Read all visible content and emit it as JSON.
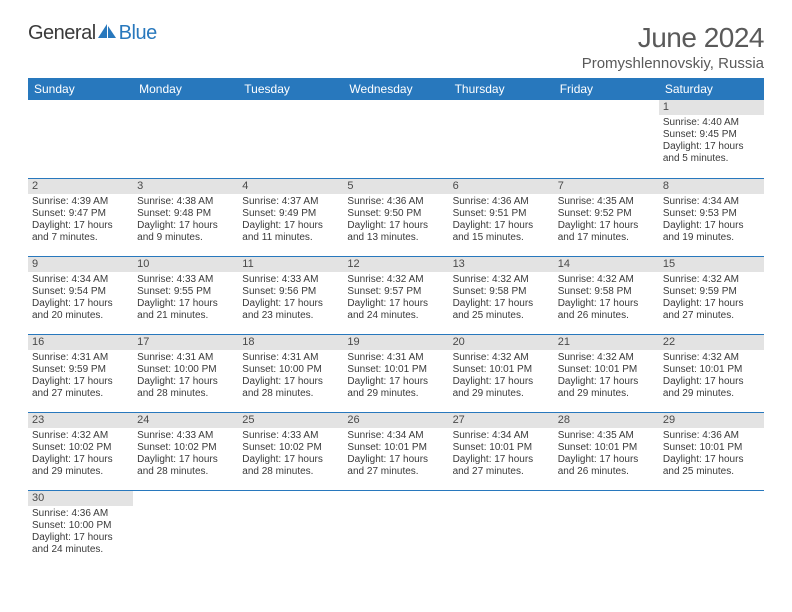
{
  "header": {
    "logo_general": "General",
    "logo_blue": "Blue",
    "month_title": "June 2024",
    "location": "Promyshlennovskiy, Russia"
  },
  "colors": {
    "header_bg": "#2878bd",
    "header_fg": "#ffffff",
    "daynum_bg": "#e3e3e3",
    "cell_border": "#2878bd",
    "text": "#3a3a3a",
    "title": "#5a5a5a"
  },
  "weekdays": [
    "Sunday",
    "Monday",
    "Tuesday",
    "Wednesday",
    "Thursday",
    "Friday",
    "Saturday"
  ],
  "grid": [
    [
      null,
      null,
      null,
      null,
      null,
      null,
      {
        "n": "1",
        "sr": "Sunrise: 4:40 AM",
        "ss": "Sunset: 9:45 PM",
        "dl1": "Daylight: 17 hours",
        "dl2": "and 5 minutes."
      }
    ],
    [
      {
        "n": "2",
        "sr": "Sunrise: 4:39 AM",
        "ss": "Sunset: 9:47 PM",
        "dl1": "Daylight: 17 hours",
        "dl2": "and 7 minutes."
      },
      {
        "n": "3",
        "sr": "Sunrise: 4:38 AM",
        "ss": "Sunset: 9:48 PM",
        "dl1": "Daylight: 17 hours",
        "dl2": "and 9 minutes."
      },
      {
        "n": "4",
        "sr": "Sunrise: 4:37 AM",
        "ss": "Sunset: 9:49 PM",
        "dl1": "Daylight: 17 hours",
        "dl2": "and 11 minutes."
      },
      {
        "n": "5",
        "sr": "Sunrise: 4:36 AM",
        "ss": "Sunset: 9:50 PM",
        "dl1": "Daylight: 17 hours",
        "dl2": "and 13 minutes."
      },
      {
        "n": "6",
        "sr": "Sunrise: 4:36 AM",
        "ss": "Sunset: 9:51 PM",
        "dl1": "Daylight: 17 hours",
        "dl2": "and 15 minutes."
      },
      {
        "n": "7",
        "sr": "Sunrise: 4:35 AM",
        "ss": "Sunset: 9:52 PM",
        "dl1": "Daylight: 17 hours",
        "dl2": "and 17 minutes."
      },
      {
        "n": "8",
        "sr": "Sunrise: 4:34 AM",
        "ss": "Sunset: 9:53 PM",
        "dl1": "Daylight: 17 hours",
        "dl2": "and 19 minutes."
      }
    ],
    [
      {
        "n": "9",
        "sr": "Sunrise: 4:34 AM",
        "ss": "Sunset: 9:54 PM",
        "dl1": "Daylight: 17 hours",
        "dl2": "and 20 minutes."
      },
      {
        "n": "10",
        "sr": "Sunrise: 4:33 AM",
        "ss": "Sunset: 9:55 PM",
        "dl1": "Daylight: 17 hours",
        "dl2": "and 21 minutes."
      },
      {
        "n": "11",
        "sr": "Sunrise: 4:33 AM",
        "ss": "Sunset: 9:56 PM",
        "dl1": "Daylight: 17 hours",
        "dl2": "and 23 minutes."
      },
      {
        "n": "12",
        "sr": "Sunrise: 4:32 AM",
        "ss": "Sunset: 9:57 PM",
        "dl1": "Daylight: 17 hours",
        "dl2": "and 24 minutes."
      },
      {
        "n": "13",
        "sr": "Sunrise: 4:32 AM",
        "ss": "Sunset: 9:58 PM",
        "dl1": "Daylight: 17 hours",
        "dl2": "and 25 minutes."
      },
      {
        "n": "14",
        "sr": "Sunrise: 4:32 AM",
        "ss": "Sunset: 9:58 PM",
        "dl1": "Daylight: 17 hours",
        "dl2": "and 26 minutes."
      },
      {
        "n": "15",
        "sr": "Sunrise: 4:32 AM",
        "ss": "Sunset: 9:59 PM",
        "dl1": "Daylight: 17 hours",
        "dl2": "and 27 minutes."
      }
    ],
    [
      {
        "n": "16",
        "sr": "Sunrise: 4:31 AM",
        "ss": "Sunset: 9:59 PM",
        "dl1": "Daylight: 17 hours",
        "dl2": "and 27 minutes."
      },
      {
        "n": "17",
        "sr": "Sunrise: 4:31 AM",
        "ss": "Sunset: 10:00 PM",
        "dl1": "Daylight: 17 hours",
        "dl2": "and 28 minutes."
      },
      {
        "n": "18",
        "sr": "Sunrise: 4:31 AM",
        "ss": "Sunset: 10:00 PM",
        "dl1": "Daylight: 17 hours",
        "dl2": "and 28 minutes."
      },
      {
        "n": "19",
        "sr": "Sunrise: 4:31 AM",
        "ss": "Sunset: 10:01 PM",
        "dl1": "Daylight: 17 hours",
        "dl2": "and 29 minutes."
      },
      {
        "n": "20",
        "sr": "Sunrise: 4:32 AM",
        "ss": "Sunset: 10:01 PM",
        "dl1": "Daylight: 17 hours",
        "dl2": "and 29 minutes."
      },
      {
        "n": "21",
        "sr": "Sunrise: 4:32 AM",
        "ss": "Sunset: 10:01 PM",
        "dl1": "Daylight: 17 hours",
        "dl2": "and 29 minutes."
      },
      {
        "n": "22",
        "sr": "Sunrise: 4:32 AM",
        "ss": "Sunset: 10:01 PM",
        "dl1": "Daylight: 17 hours",
        "dl2": "and 29 minutes."
      }
    ],
    [
      {
        "n": "23",
        "sr": "Sunrise: 4:32 AM",
        "ss": "Sunset: 10:02 PM",
        "dl1": "Daylight: 17 hours",
        "dl2": "and 29 minutes."
      },
      {
        "n": "24",
        "sr": "Sunrise: 4:33 AM",
        "ss": "Sunset: 10:02 PM",
        "dl1": "Daylight: 17 hours",
        "dl2": "and 28 minutes."
      },
      {
        "n": "25",
        "sr": "Sunrise: 4:33 AM",
        "ss": "Sunset: 10:02 PM",
        "dl1": "Daylight: 17 hours",
        "dl2": "and 28 minutes."
      },
      {
        "n": "26",
        "sr": "Sunrise: 4:34 AM",
        "ss": "Sunset: 10:01 PM",
        "dl1": "Daylight: 17 hours",
        "dl2": "and 27 minutes."
      },
      {
        "n": "27",
        "sr": "Sunrise: 4:34 AM",
        "ss": "Sunset: 10:01 PM",
        "dl1": "Daylight: 17 hours",
        "dl2": "and 27 minutes."
      },
      {
        "n": "28",
        "sr": "Sunrise: 4:35 AM",
        "ss": "Sunset: 10:01 PM",
        "dl1": "Daylight: 17 hours",
        "dl2": "and 26 minutes."
      },
      {
        "n": "29",
        "sr": "Sunrise: 4:36 AM",
        "ss": "Sunset: 10:01 PM",
        "dl1": "Daylight: 17 hours",
        "dl2": "and 25 minutes."
      }
    ],
    [
      {
        "n": "30",
        "sr": "Sunrise: 4:36 AM",
        "ss": "Sunset: 10:00 PM",
        "dl1": "Daylight: 17 hours",
        "dl2": "and 24 minutes."
      },
      null,
      null,
      null,
      null,
      null,
      null
    ]
  ]
}
